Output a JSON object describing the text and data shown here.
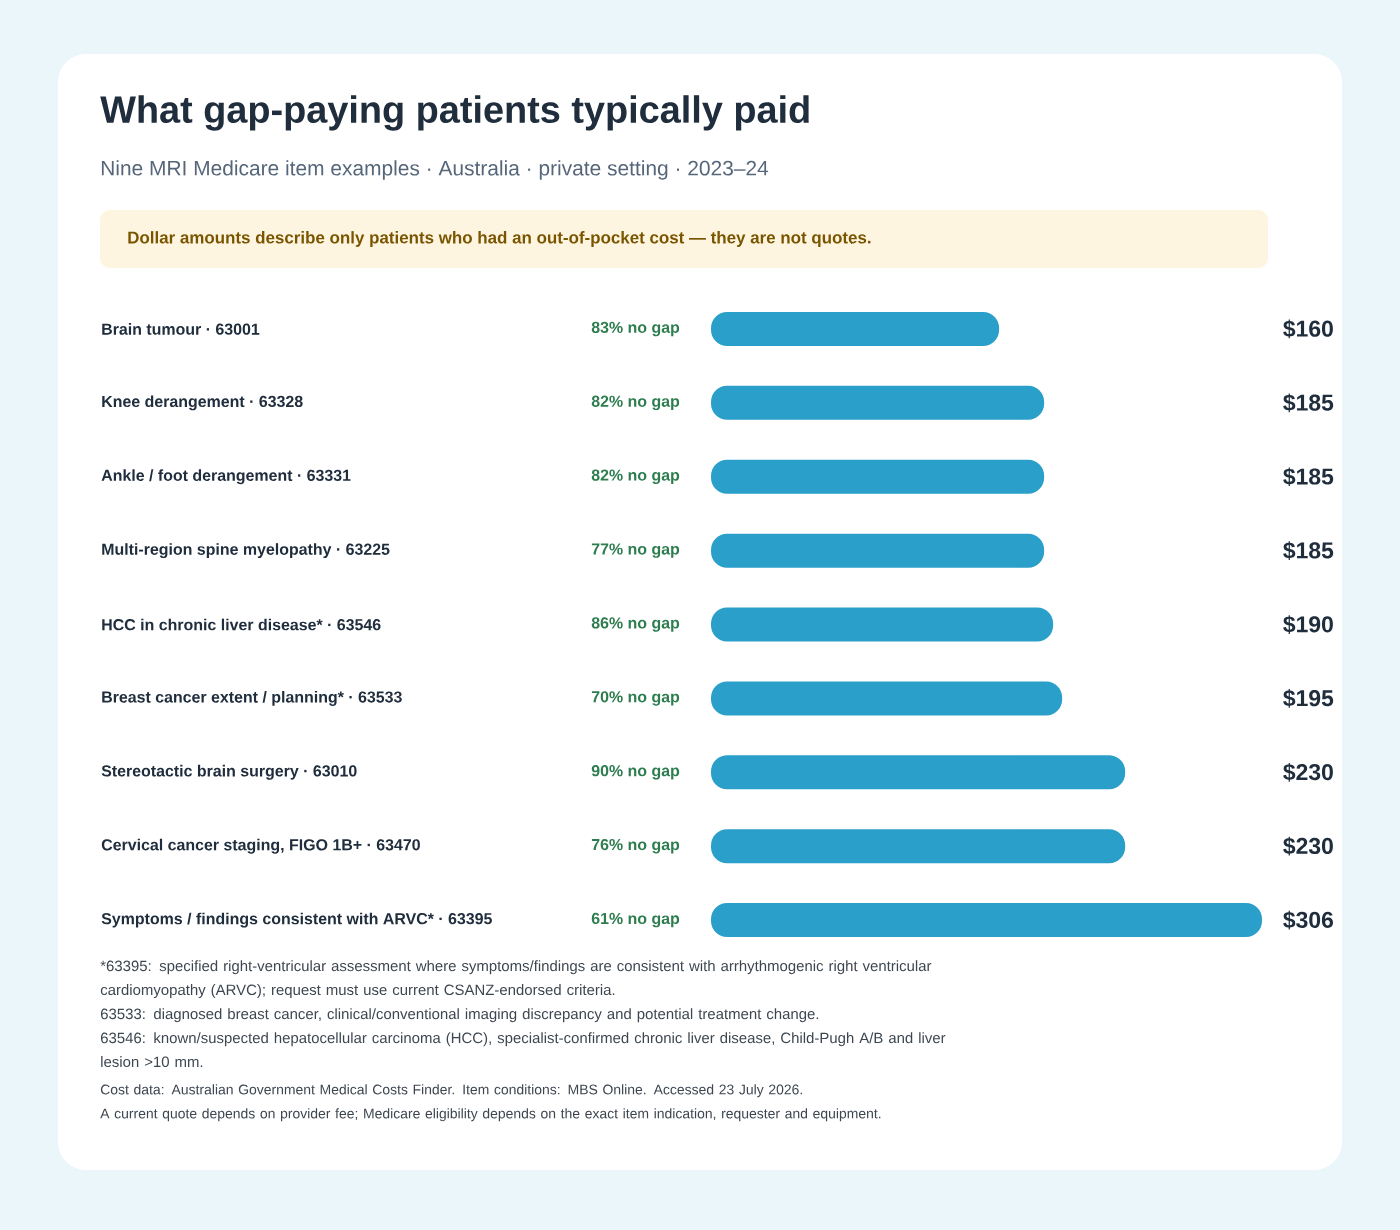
{
  "chart_data": {
    "type": "bar",
    "orientation": "horizontal",
    "title": "What gap-paying patients typically paid",
    "subtitle": "Nine MRI Medicare item examples · Australia · private setting · 2023–24",
    "categories": [
      "Brain tumour · 63001",
      "Knee derangement · 63328",
      "Ankle / foot derangement · 63331",
      "Multi-region spine myelopathy · 63225",
      "HCC in chronic liver disease* · 63546",
      "Breast cancer extent / planning* · 63533",
      "Stereotactic brain surgery · 63010",
      "Cervical cancer staging, FIGO 1B+ · 63470",
      "Symptoms / findings consistent with ARVC* · 63395"
    ],
    "values": [
      160,
      185,
      185,
      185,
      190,
      195,
      230,
      230,
      306
    ],
    "value_labels": [
      "$160",
      "$185",
      "$185",
      "$185",
      "$190",
      "$195",
      "$230",
      "$230",
      "$306"
    ],
    "color": "#2a9fc9",
    "xlim": [
      0,
      306
    ],
    "tick_labels": "y",
    "annotations": [
      {
        "text": "Dollar amounts describe only patients who had an out-of-pocket cost — they are not quotes."
      },
      {
        "text": "83% no gap"
      },
      {
        "text": "82% no gap"
      },
      {
        "text": "82% no gap"
      },
      {
        "text": "77% no gap"
      },
      {
        "text": "86% no gap"
      },
      {
        "text": "70% no gap"
      },
      {
        "text": "90% no gap"
      },
      {
        "text": "76% no gap"
      },
      {
        "text": "61% no gap"
      },
      {
        "text": "*63395: specified right-ventricular assessment where symptoms/findings are consistent with arrhythmogenic right ventricular cardiomyopathy (ARVC); request must use current CSANZ-endorsed criteria."
      },
      {
        "text": "63533: diagnosed breast cancer, clinical/conventional imaging discrepancy and potential treatment change."
      },
      {
        "text": "63546: known/suspected hepatocellular carcinoma (HCC), specialist-confirmed chronic liver disease, Child-Pugh A/B and liver lesion >10 mm."
      },
      {
        "text": "Cost data: Australian Government Medical Costs Finder. Item conditions: MBS Online. Accessed 23 July 2026."
      },
      {
        "text": "A current quote depends on provider fee; Medicare eligibility depends on the exact item indication, requester and equipment."
      }
    ]
  }
}
